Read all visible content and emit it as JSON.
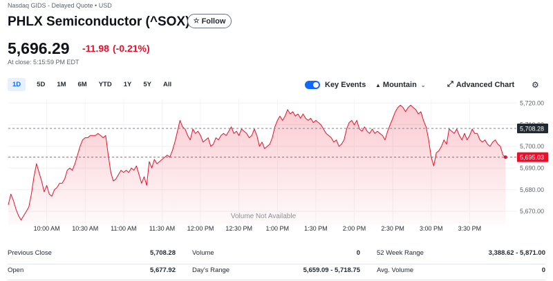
{
  "header": {
    "exchange": "Nasdaq GIDS - Delayed Quote • USD",
    "title": "PHLX Semiconductor (^SOX)",
    "follow_label": "Follow"
  },
  "quote": {
    "price": "5,696.29",
    "change": "-11.98",
    "change_pct": "(-0.21%)",
    "close_time": "At close: 5:15:59 PM EDT",
    "negative_color": "#eb0f29"
  },
  "toolbar": {
    "ranges": [
      "1D",
      "5D",
      "1M",
      "6M",
      "YTD",
      "1Y",
      "5Y",
      "All"
    ],
    "active_range": "1D",
    "key_events_label": "Key Events",
    "key_events_on": true,
    "chart_type_label": "Mountain",
    "advanced_chart_label": "Advanced Chart"
  },
  "chart_data": {
    "type": "area",
    "x_ticks": [
      "10:00 AM",
      "10:30 AM",
      "11:00 AM",
      "11:30 AM",
      "12:00 PM",
      "12:30 PM",
      "1:00 PM",
      "1:30 PM",
      "2:00 PM",
      "2:30 PM",
      "3:00 PM",
      "3:30 PM"
    ],
    "y_ticks": [
      "5,720.00",
      "5,710.00",
      "5,700.00",
      "5,690.00",
      "5,680.00",
      "5,670.00"
    ],
    "y_tick_values": [
      5720,
      5710,
      5700,
      5690,
      5680,
      5670
    ],
    "ylim": [
      5664,
      5722
    ],
    "x_range_minutes": [
      0,
      390
    ],
    "previous_close": {
      "label": "5,708.28",
      "value": 5708.28
    },
    "last_price": {
      "label": "5,695.03",
      "value": 5695.03
    },
    "volume_note": "Volume Not Available",
    "line_color": "#eb0f29",
    "series": [
      {
        "points": [
          [
            0,
            5673
          ],
          [
            2,
            5678
          ],
          [
            4,
            5675
          ],
          [
            6,
            5671
          ],
          [
            8,
            5668
          ],
          [
            10,
            5666
          ],
          [
            12,
            5668
          ],
          [
            14,
            5670
          ],
          [
            16,
            5672
          ],
          [
            18,
            5678
          ],
          [
            20,
            5686
          ],
          [
            22,
            5692
          ],
          [
            24,
            5688
          ],
          [
            26,
            5684
          ],
          [
            28,
            5679
          ],
          [
            30,
            5682
          ],
          [
            32,
            5678
          ],
          [
            34,
            5677
          ],
          [
            36,
            5680
          ],
          [
            38,
            5681
          ],
          [
            40,
            5683
          ],
          [
            42,
            5683
          ],
          [
            44,
            5685
          ],
          [
            46,
            5689
          ],
          [
            48,
            5690
          ],
          [
            50,
            5689
          ],
          [
            52,
            5692
          ],
          [
            54,
            5696
          ],
          [
            56,
            5700
          ],
          [
            58,
            5703
          ],
          [
            60,
            5704
          ],
          [
            62,
            5704
          ],
          [
            64,
            5705
          ],
          [
            66,
            5705
          ],
          [
            68,
            5705
          ],
          [
            70,
            5706
          ],
          [
            72,
            5705
          ],
          [
            74,
            5704
          ],
          [
            76,
            5705
          ],
          [
            78,
            5696
          ],
          [
            80,
            5688
          ],
          [
            82,
            5684
          ],
          [
            84,
            5685
          ],
          [
            86,
            5687
          ],
          [
            88,
            5689
          ],
          [
            90,
            5688
          ],
          [
            92,
            5689
          ],
          [
            94,
            5688
          ],
          [
            96,
            5690
          ],
          [
            98,
            5689
          ],
          [
            100,
            5691
          ],
          [
            102,
            5687
          ],
          [
            104,
            5683
          ],
          [
            106,
            5686
          ],
          [
            108,
            5682
          ],
          [
            110,
            5693
          ],
          [
            112,
            5690
          ],
          [
            114,
            5694
          ],
          [
            116,
            5692
          ],
          [
            118,
            5693
          ],
          [
            120,
            5694
          ],
          [
            122,
            5695
          ],
          [
            124,
            5696
          ],
          [
            126,
            5695
          ],
          [
            128,
            5698
          ],
          [
            130,
            5702
          ],
          [
            132,
            5707
          ],
          [
            134,
            5712
          ],
          [
            136,
            5709
          ],
          [
            138,
            5708
          ],
          [
            140,
            5705
          ],
          [
            142,
            5703
          ],
          [
            144,
            5708
          ],
          [
            146,
            5706
          ],
          [
            148,
            5707
          ],
          [
            150,
            5705
          ],
          [
            152,
            5702
          ],
          [
            154,
            5703
          ],
          [
            156,
            5704
          ],
          [
            158,
            5700
          ],
          [
            160,
            5701
          ],
          [
            162,
            5704
          ],
          [
            164,
            5703
          ],
          [
            166,
            5705
          ],
          [
            168,
            5706
          ],
          [
            170,
            5705
          ],
          [
            172,
            5707
          ],
          [
            174,
            5709
          ],
          [
            176,
            5706
          ],
          [
            178,
            5707
          ],
          [
            180,
            5705
          ],
          [
            182,
            5708
          ],
          [
            184,
            5707
          ],
          [
            186,
            5706
          ],
          [
            188,
            5704
          ],
          [
            190,
            5705
          ],
          [
            192,
            5708
          ],
          [
            194,
            5705
          ],
          [
            196,
            5700
          ],
          [
            198,
            5702
          ],
          [
            200,
            5699
          ],
          [
            202,
            5700
          ],
          [
            204,
            5701
          ],
          [
            206,
            5704
          ],
          [
            208,
            5709
          ],
          [
            210,
            5712
          ],
          [
            212,
            5714
          ],
          [
            214,
            5712
          ],
          [
            216,
            5714
          ],
          [
            218,
            5717
          ],
          [
            220,
            5715
          ],
          [
            222,
            5716
          ],
          [
            224,
            5714
          ],
          [
            226,
            5715
          ],
          [
            228,
            5713
          ],
          [
            230,
            5715
          ],
          [
            232,
            5713
          ],
          [
            234,
            5712
          ],
          [
            236,
            5713
          ],
          [
            238,
            5711
          ],
          [
            240,
            5712
          ],
          [
            242,
            5711
          ],
          [
            244,
            5710
          ],
          [
            246,
            5708
          ],
          [
            248,
            5706
          ],
          [
            250,
            5705
          ],
          [
            252,
            5704
          ],
          [
            254,
            5702
          ],
          [
            256,
            5703
          ],
          [
            258,
            5700
          ],
          [
            260,
            5701
          ],
          [
            262,
            5703
          ],
          [
            264,
            5708
          ],
          [
            266,
            5711
          ],
          [
            268,
            5712
          ],
          [
            270,
            5710
          ],
          [
            272,
            5712
          ],
          [
            274,
            5708
          ],
          [
            276,
            5707
          ],
          [
            278,
            5709
          ],
          [
            280,
            5707
          ],
          [
            282,
            5706
          ],
          [
            284,
            5708
          ],
          [
            286,
            5706
          ],
          [
            288,
            5707
          ],
          [
            290,
            5706
          ],
          [
            292,
            5705
          ],
          [
            294,
            5703
          ],
          [
            296,
            5707
          ],
          [
            298,
            5710
          ],
          [
            300,
            5713
          ],
          [
            302,
            5716
          ],
          [
            304,
            5718
          ],
          [
            306,
            5719
          ],
          [
            308,
            5718
          ],
          [
            310,
            5716
          ],
          [
            312,
            5718
          ],
          [
            314,
            5719
          ],
          [
            316,
            5718
          ],
          [
            318,
            5717
          ],
          [
            320,
            5715
          ],
          [
            322,
            5716
          ],
          [
            324,
            5712
          ],
          [
            326,
            5709
          ],
          [
            328,
            5703
          ],
          [
            330,
            5695
          ],
          [
            332,
            5691
          ],
          [
            334,
            5697
          ],
          [
            336,
            5698
          ],
          [
            338,
            5700
          ],
          [
            340,
            5703
          ],
          [
            342,
            5701
          ],
          [
            344,
            5708
          ],
          [
            346,
            5707
          ],
          [
            348,
            5706
          ],
          [
            350,
            5708
          ],
          [
            352,
            5705
          ],
          [
            354,
            5703
          ],
          [
            356,
            5706
          ],
          [
            358,
            5703
          ],
          [
            360,
            5705
          ],
          [
            362,
            5708
          ],
          [
            364,
            5706
          ],
          [
            366,
            5706
          ],
          [
            368,
            5703
          ],
          [
            370,
            5702
          ],
          [
            372,
            5703
          ],
          [
            374,
            5701
          ],
          [
            376,
            5700
          ],
          [
            378,
            5702
          ],
          [
            380,
            5703
          ],
          [
            382,
            5701
          ],
          [
            384,
            5700
          ],
          [
            386,
            5696
          ],
          [
            388,
            5695.03
          ]
        ]
      }
    ]
  },
  "stats": {
    "previous_close_label": "Previous Close",
    "previous_close": "5,708.28",
    "volume_label": "Volume",
    "volume": "0",
    "week52_label": "52 Week Range",
    "week52": "3,388.62 - 5,871.00",
    "open_label": "Open",
    "open": "5,677.92",
    "days_range_label": "Day's Range",
    "days_range": "5,659.09 - 5,718.75",
    "avg_volume_label": "Avg. Volume",
    "avg_volume": "0"
  }
}
